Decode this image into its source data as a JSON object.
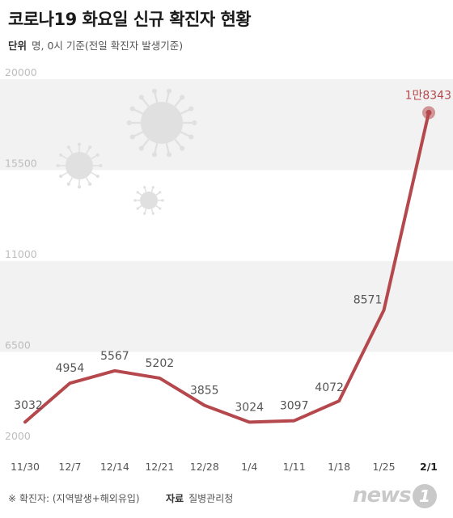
{
  "title": "코로나19 화요일 신규 확진자 현황",
  "unit_label": "단위",
  "unit_text": "명, 0시 기준(전일 확진자 발생기준)",
  "footnote": "※ 확진자: (지역발생+해외유입)",
  "source_label": "자료",
  "source_text": "질병관리청",
  "logo_text": "news",
  "logo_badge": "1",
  "colors": {
    "line": "#b5484d",
    "band": "#f2f2f2",
    "virus": "#e0e0e0"
  },
  "chart_data": {
    "type": "line",
    "title": "코로나19 화요일 신규 확진자 현황",
    "xlabel": "",
    "ylabel": "",
    "categories": [
      "11/30",
      "12/7",
      "12/14",
      "12/21",
      "12/28",
      "1/4",
      "1/11",
      "1/18",
      "1/25",
      "2/1"
    ],
    "values": [
      3032,
      4954,
      5567,
      5202,
      3855,
      3024,
      3097,
      4072,
      8571,
      18343
    ],
    "data_labels": [
      "3032",
      "4954",
      "5567",
      "5202",
      "3855",
      "3024",
      "3097",
      "4072",
      "8571",
      "1만8343"
    ],
    "yticks": [
      2000,
      6500,
      11000,
      15500,
      20000
    ],
    "ylim": [
      2000,
      20000
    ],
    "grid": false
  }
}
